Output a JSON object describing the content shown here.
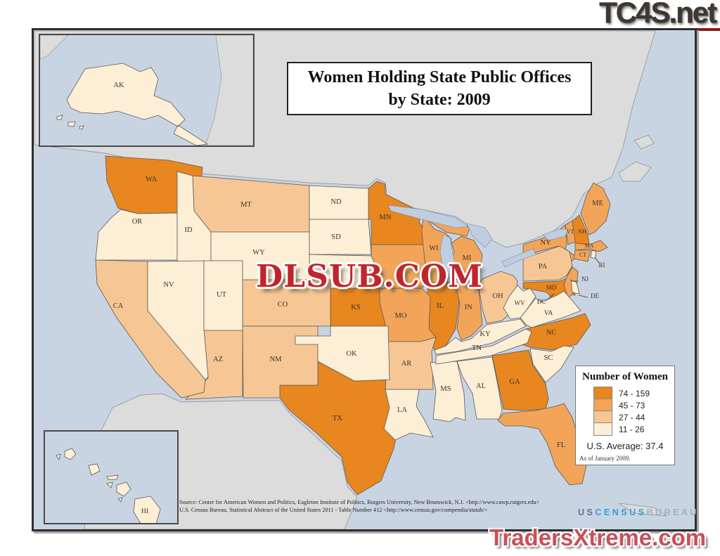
{
  "watermarks": {
    "top_right": "TC4S.net",
    "center": "DLSUB.COM",
    "bottom_right": "TradersXtreme.com"
  },
  "title": {
    "line1": "Women Holding State Public Offices",
    "line2": "by State: 2009"
  },
  "legend": {
    "title": "Number of Women",
    "classes": [
      {
        "label": "74 - 159",
        "color": "#E8861F"
      },
      {
        "label": "45 - 73",
        "color": "#F2A558"
      },
      {
        "label": "27 - 44",
        "color": "#F6C794"
      },
      {
        "label": "11 - 26",
        "color": "#FCEFD5"
      }
    ],
    "average": "U.S. Average: 37.4",
    "as_of": "As of January 2009."
  },
  "source": {
    "line1": "Source:  Center for American Women and Politics, Eagleton Institute of Politics, Rutgers University, New Brunswick, N.J. <http://www.cawp.rutgers.edu>",
    "line2": "U.S. Census Bureau, Statistical Abstract of the United States 2011 - Table Number 412 <http://www.census.gov/compendia/statab/>"
  },
  "census_logo": {
    "part1": "US",
    "part2": "CENSUS",
    "part3": "BUREAU"
  },
  "map": {
    "water_color": "#C9D4E3",
    "foreign_land_color": "#DCDCDC",
    "states": [
      {
        "code": "WA",
        "category": "74 - 159"
      },
      {
        "code": "MN",
        "category": "74 - 159"
      },
      {
        "code": "IL",
        "category": "74 - 159"
      },
      {
        "code": "KS",
        "category": "74 - 159"
      },
      {
        "code": "TX",
        "category": "74 - 159"
      },
      {
        "code": "GA",
        "category": "74 - 159"
      },
      {
        "code": "NC",
        "category": "74 - 159"
      },
      {
        "code": "NH",
        "category": "74 - 159"
      },
      {
        "code": "MD",
        "category": "74 - 159"
      },
      {
        "code": "MO",
        "category": "45 - 73"
      },
      {
        "code": "IA",
        "category": "45 - 73"
      },
      {
        "code": "IN",
        "category": "45 - 73"
      },
      {
        "code": "WI",
        "category": "45 - 73"
      },
      {
        "code": "MI",
        "category": "45 - 73"
      },
      {
        "code": "FL",
        "category": "45 - 73"
      },
      {
        "code": "NY",
        "category": "45 - 73"
      },
      {
        "code": "VT",
        "category": "45 - 73"
      },
      {
        "code": "ME",
        "category": "45 - 73"
      },
      {
        "code": "MA",
        "category": "45 - 73"
      },
      {
        "code": "CT",
        "category": "45 - 73"
      },
      {
        "code": "NJ",
        "category": "45 - 73"
      },
      {
        "code": "MT",
        "category": "27 - 44"
      },
      {
        "code": "CO",
        "category": "27 - 44"
      },
      {
        "code": "NM",
        "category": "27 - 44"
      },
      {
        "code": "AZ",
        "category": "27 - 44"
      },
      {
        "code": "CA",
        "category": "27 - 44"
      },
      {
        "code": "AR",
        "category": "27 - 44"
      },
      {
        "code": "OH",
        "category": "27 - 44"
      },
      {
        "code": "PA",
        "category": "27 - 44"
      },
      {
        "code": "OR",
        "category": "11 - 26"
      },
      {
        "code": "ID",
        "category": "11 - 26"
      },
      {
        "code": "WY",
        "category": "11 - 26"
      },
      {
        "code": "NV",
        "category": "11 - 26"
      },
      {
        "code": "UT",
        "category": "11 - 26"
      },
      {
        "code": "ND",
        "category": "11 - 26"
      },
      {
        "code": "SD",
        "category": "11 - 26"
      },
      {
        "code": "NE",
        "category": "11 - 26"
      },
      {
        "code": "OK",
        "category": "11 - 26"
      },
      {
        "code": "LA",
        "category": "11 - 26"
      },
      {
        "code": "MS",
        "category": "11 - 26"
      },
      {
        "code": "AL",
        "category": "11 - 26"
      },
      {
        "code": "SC",
        "category": "11 - 26"
      },
      {
        "code": "VA",
        "category": "11 - 26"
      },
      {
        "code": "WV",
        "category": "11 - 26"
      },
      {
        "code": "KY",
        "category": "11 - 26"
      },
      {
        "code": "TN",
        "category": "11 - 26"
      },
      {
        "code": "DE",
        "category": "11 - 26"
      },
      {
        "code": "RI",
        "category": "11 - 26"
      },
      {
        "code": "AK",
        "category": "11 - 26"
      },
      {
        "code": "HI",
        "category": "11 - 26"
      },
      {
        "code": "DC",
        "category": null
      }
    ]
  }
}
